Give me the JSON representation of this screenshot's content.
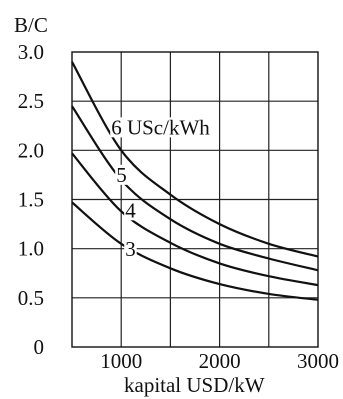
{
  "chart_data": {
    "type": "line",
    "ylabel": "B/C",
    "xlabel": "kapital  USD/kW",
    "xlim": [
      500,
      3000
    ],
    "ylim": [
      0,
      3.0
    ],
    "x_ticks": [
      "1000",
      "2000",
      "3000"
    ],
    "y_ticks": [
      "0",
      "0.5",
      "1.0",
      "1.5",
      "2.0",
      "2.5",
      "3.0"
    ],
    "grid": true,
    "series": [
      {
        "name": "6 USc/kWh",
        "x": [
          500,
          1000,
          1500,
          2000,
          2500,
          3000
        ],
        "y": [
          2.9,
          2.0,
          1.55,
          1.25,
          1.05,
          0.92
        ]
      },
      {
        "name": "5",
        "x": [
          500,
          1000,
          1500,
          2000,
          2500,
          3000
        ],
        "y": [
          2.45,
          1.7,
          1.3,
          1.05,
          0.9,
          0.78
        ]
      },
      {
        "name": "4",
        "x": [
          500,
          1000,
          1500,
          2000,
          2500,
          3000
        ],
        "y": [
          1.97,
          1.38,
          1.06,
          0.85,
          0.72,
          0.63
        ]
      },
      {
        "name": "3",
        "x": [
          500,
          1000,
          1500,
          2000,
          2500,
          3000
        ],
        "y": [
          1.47,
          1.05,
          0.8,
          0.64,
          0.54,
          0.48
        ]
      }
    ]
  }
}
